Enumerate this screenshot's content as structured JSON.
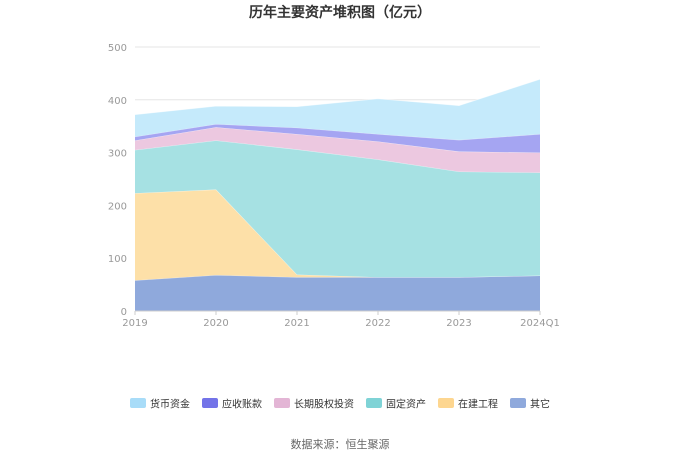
{
  "chart_data": {
    "type": "area",
    "stacked": true,
    "title": "历年主要资产堆积图（亿元）",
    "categories": [
      "2019",
      "2020",
      "2021",
      "2022",
      "2023",
      "2024Q1"
    ],
    "ylim": [
      0,
      500
    ],
    "yticks": [
      0,
      100,
      200,
      300,
      400,
      500
    ],
    "grid": true,
    "legend_position": "bottom",
    "series": [
      {
        "name": "其它",
        "color": "#8fa9dc",
        "values": [
          58,
          68,
          64,
          64,
          64,
          67
        ]
      },
      {
        "name": "在建工程",
        "color": "#fde0a8",
        "values": [
          165,
          162,
          5,
          0,
          0,
          0
        ]
      },
      {
        "name": "固定资产",
        "color": "#a6e1e3",
        "values": [
          82,
          93,
          237,
          223,
          200,
          195
        ]
      },
      {
        "name": "长期股权投资",
        "color": "#ecc8e0",
        "values": [
          18,
          25,
          29,
          34,
          38,
          38
        ]
      },
      {
        "name": "应收账款",
        "color": "#a5a5f2",
        "values": [
          7,
          6,
          12,
          14,
          22,
          35
        ]
      },
      {
        "name": "货币资金",
        "color": "#c5eafb",
        "values": [
          42,
          34,
          40,
          67,
          65,
          104
        ]
      }
    ],
    "legend_order": [
      "货币资金",
      "应收账款",
      "长期股权投资",
      "固定资产",
      "在建工程",
      "其它"
    ],
    "legend_colors": {
      "货币资金": "#a8dcf8",
      "应收账款": "#7373e8",
      "长期股权投资": "#e3b5d5",
      "固定资产": "#7fd3d6",
      "在建工程": "#fdd690",
      "其它": "#8fa9dc"
    }
  },
  "source": "数据来源：恒生聚源"
}
